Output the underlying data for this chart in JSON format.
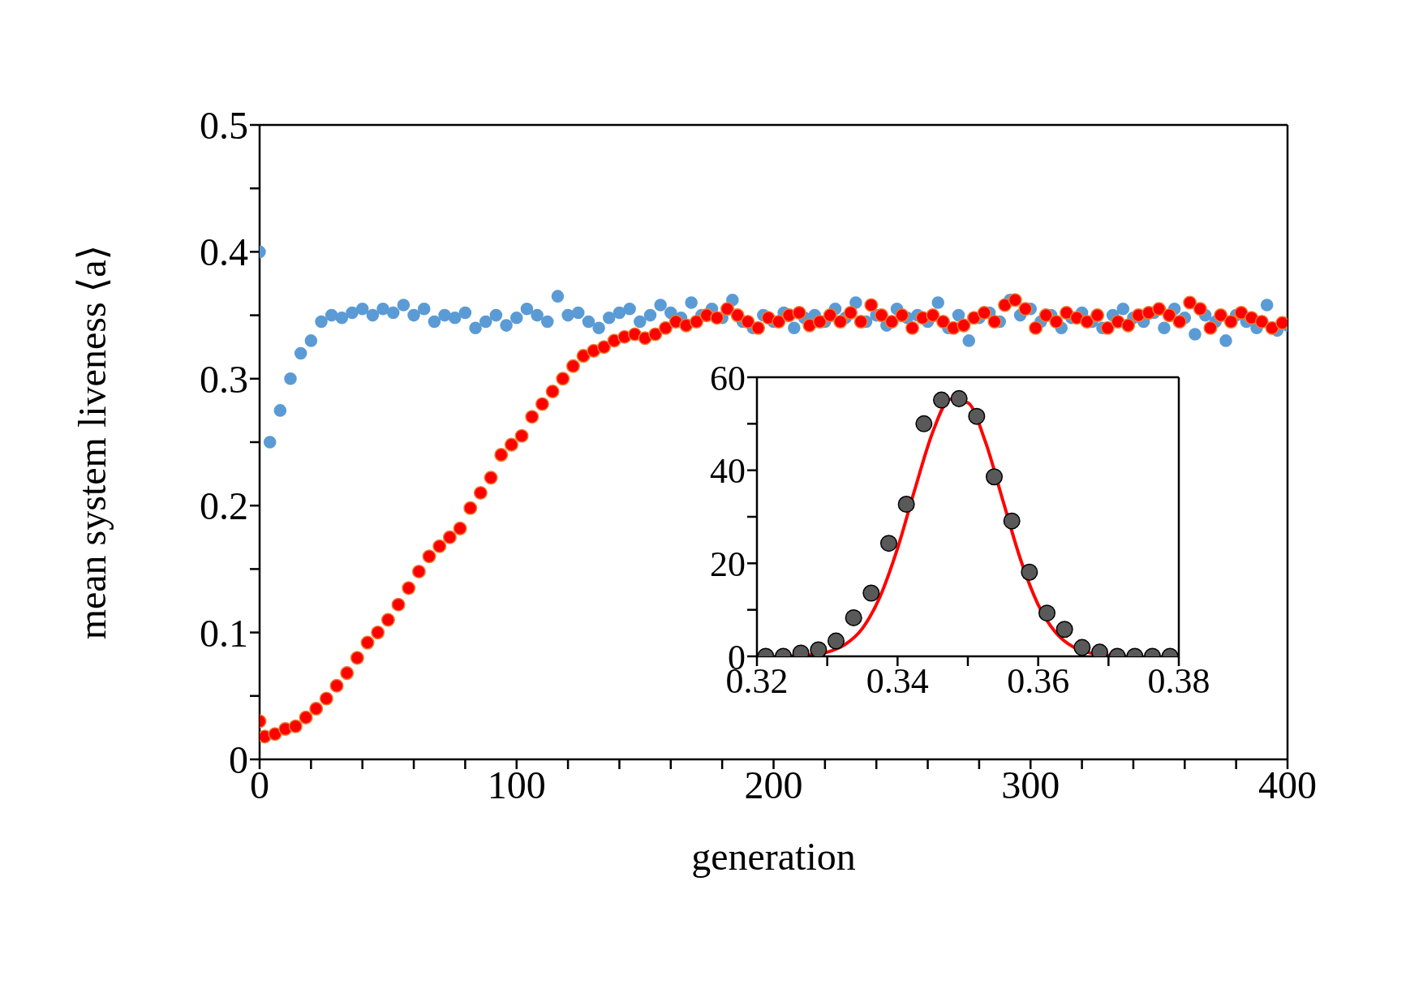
{
  "chart_data": [
    {
      "type": "scatter",
      "xlabel": "generation",
      "ylabel": "mean system liveness ⟨a⟩",
      "xlim": [
        0,
        400
      ],
      "ylim": [
        0,
        0.5
      ],
      "xticks": [
        0,
        {
          "value": 20,
          "label": null
        },
        {
          "value": 40,
          "label": null
        },
        {
          "value": 60,
          "label": null
        },
        {
          "value": 80,
          "label": null
        },
        100,
        {
          "value": 120,
          "label": null
        },
        {
          "value": 140,
          "label": null
        },
        {
          "value": 160,
          "label": null
        },
        {
          "value": 180,
          "label": null
        },
        200,
        {
          "value": 220,
          "label": null
        },
        {
          "value": 240,
          "label": null
        },
        {
          "value": 260,
          "label": null
        },
        {
          "value": 280,
          "label": null
        },
        300,
        {
          "value": 320,
          "label": null
        },
        {
          "value": 340,
          "label": null
        },
        {
          "value": 360,
          "label": null
        },
        {
          "value": 380,
          "label": null
        },
        400
      ],
      "yticks": [
        0,
        {
          "value": 0.05,
          "label": null
        },
        0.1,
        {
          "value": 0.15,
          "label": null
        },
        0.2,
        {
          "value": 0.25,
          "label": null
        },
        0.3,
        {
          "value": 0.35,
          "label": null
        },
        0.4,
        {
          "value": 0.45,
          "label": null
        },
        0.5
      ],
      "marker": "circle",
      "legend": false,
      "x": [
        0,
        4,
        8,
        12,
        16,
        20,
        24,
        28,
        32,
        36,
        40,
        44,
        48,
        52,
        56,
        60,
        64,
        68,
        72,
        76,
        80,
        84,
        88,
        92,
        96,
        100,
        104,
        108,
        112,
        116,
        120,
        124,
        128,
        132,
        136,
        140,
        144,
        148,
        152,
        156,
        160,
        164,
        168,
        172,
        176,
        180,
        184,
        188,
        192,
        196,
        200,
        204,
        208,
        212,
        216,
        220,
        224,
        228,
        232,
        236,
        240,
        244,
        248,
        252,
        256,
        260,
        264,
        268,
        272,
        276,
        280,
        284,
        288,
        292,
        296,
        300,
        304,
        308,
        312,
        316,
        320,
        324,
        328,
        332,
        336,
        340,
        344,
        348,
        352,
        356,
        360,
        364,
        368,
        372,
        376,
        380,
        384,
        388,
        392,
        396,
        400
      ],
      "series": [
        {
          "color": "#5b9bd5",
          "values": [
            0.4,
            0.25,
            0.275,
            0.3,
            0.32,
            0.33,
            0.345,
            0.35,
            0.348,
            0.352,
            0.355,
            0.35,
            0.355,
            0.352,
            0.358,
            0.35,
            0.355,
            0.345,
            0.35,
            0.348,
            0.352,
            0.34,
            0.345,
            0.35,
            0.342,
            0.348,
            0.355,
            0.35,
            0.345,
            0.365,
            0.35,
            0.352,
            0.345,
            0.34,
            0.348,
            0.352,
            0.355,
            0.345,
            0.35,
            0.358,
            0.352,
            0.348,
            0.36,
            0.35,
            0.355,
            0.348,
            0.362,
            0.345,
            0.34,
            0.35,
            0.345,
            0.352,
            0.34,
            0.348,
            0.35,
            0.345,
            0.355,
            0.348,
            0.36,
            0.345,
            0.35,
            0.342,
            0.355,
            0.348,
            0.35,
            0.345,
            0.36,
            0.34,
            0.35,
            0.33,
            0.348,
            0.352,
            0.345,
            0.362,
            0.35,
            0.355,
            0.345,
            0.35,
            0.34,
            0.348,
            0.352,
            0.345,
            0.34,
            0.35,
            0.355,
            0.348,
            0.345,
            0.352,
            0.34,
            0.355,
            0.348,
            0.335,
            0.35,
            0.345,
            0.33,
            0.35,
            0.345,
            0.34,
            0.358,
            0.338,
            0.342
          ]
        },
        {
          "color": "#ff0000",
          "x": [
            0,
            2,
            6,
            10,
            14,
            18,
            22,
            26,
            30,
            34,
            38,
            42,
            46,
            50,
            54,
            58,
            62,
            66,
            70,
            74,
            78,
            82,
            86,
            90,
            94,
            98,
            102,
            106,
            110,
            114,
            118,
            122,
            126,
            130,
            134,
            138,
            142,
            146,
            150,
            154,
            158,
            162,
            166,
            170,
            174,
            178,
            182,
            186,
            190,
            194,
            198,
            202,
            206,
            210,
            214,
            218,
            222,
            226,
            230,
            234,
            238,
            242,
            246,
            250,
            254,
            258,
            262,
            266,
            270,
            274,
            278,
            282,
            286,
            290,
            294,
            298,
            302,
            306,
            310,
            314,
            318,
            322,
            326,
            330,
            334,
            338,
            342,
            346,
            350,
            354,
            358,
            362,
            366,
            370,
            374,
            378,
            382,
            386,
            390,
            394,
            398
          ],
          "values": [
            0.03,
            0.018,
            0.02,
            0.024,
            0.026,
            0.033,
            0.04,
            0.048,
            0.058,
            0.068,
            0.08,
            0.092,
            0.1,
            0.11,
            0.122,
            0.135,
            0.148,
            0.16,
            0.168,
            0.175,
            0.182,
            0.198,
            0.21,
            0.222,
            0.24,
            0.248,
            0.255,
            0.27,
            0.28,
            0.29,
            0.3,
            0.31,
            0.318,
            0.322,
            0.325,
            0.33,
            0.333,
            0.335,
            0.332,
            0.335,
            0.34,
            0.345,
            0.342,
            0.345,
            0.35,
            0.348,
            0.355,
            0.35,
            0.345,
            0.34,
            0.348,
            0.345,
            0.35,
            0.352,
            0.342,
            0.345,
            0.35,
            0.345,
            0.352,
            0.345,
            0.358,
            0.35,
            0.345,
            0.35,
            0.34,
            0.348,
            0.35,
            0.345,
            0.34,
            0.342,
            0.348,
            0.352,
            0.345,
            0.358,
            0.362,
            0.355,
            0.34,
            0.35,
            0.345,
            0.352,
            0.348,
            0.345,
            0.35,
            0.34,
            0.345,
            0.342,
            0.35,
            0.352,
            0.355,
            0.35,
            0.345,
            0.36,
            0.355,
            0.34,
            0.35,
            0.345,
            0.352,
            0.348,
            0.345,
            0.34,
            0.344
          ]
        }
      ]
    },
    {
      "type": "scatter",
      "xlim": [
        0.32,
        0.38
      ],
      "ylim": [
        0,
        60
      ],
      "legend": false,
      "xticks": [
        0.32,
        {
          "value": 0.33,
          "label": null
        },
        0.34,
        {
          "value": 0.35,
          "label": null
        },
        0.36,
        {
          "value": 0.37,
          "label": null
        },
        0.38
      ],
      "yticks": [
        0,
        {
          "value": 10,
          "label": null
        },
        20,
        {
          "value": 30,
          "label": null
        },
        40,
        {
          "value": 50,
          "label": null
        },
        60
      ],
      "series": [
        {
          "color": "#595959",
          "marker": "circle",
          "x": [
            0.32125,
            0.32375,
            0.32625,
            0.32875,
            0.33125,
            0.33375,
            0.33625,
            0.33875,
            0.34125,
            0.34375,
            0.34625,
            0.34875,
            0.35125,
            0.35375,
            0.35625,
            0.35875,
            0.36125,
            0.36375,
            0.36625,
            0.36875,
            0.37125,
            0.37375,
            0.37625,
            0.37875
          ],
          "values": [
            0,
            0,
            0.7,
            1.4,
            3.3,
            8.3,
            13.6,
            24.3,
            32.7,
            50,
            55.1,
            55.4,
            51.6,
            38.6,
            29.1,
            18.1,
            9.3,
            5.8,
            1.9,
            0.9,
            0,
            0,
            0,
            0
          ]
        },
        {
          "type": "line",
          "marker": "none",
          "color": "#ff0000",
          "x": [
            0.3225,
            0.325,
            0.3275,
            0.33,
            0.3325,
            0.335,
            0.3375,
            0.34,
            0.3425,
            0.345,
            0.3475,
            0.35,
            0.3525,
            0.355,
            0.3575,
            0.36,
            0.3625,
            0.365,
            0.3675,
            0.37,
            0.3725
          ],
          "values": [
            0,
            0.1,
            0.3,
            0.9,
            2.5,
            6,
            12.8,
            23.2,
            36.1,
            48.2,
            55.3,
            54.5,
            46.1,
            33.4,
            20.8,
            11.1,
            5.1,
            2,
            0.7,
            0.2,
            0.1
          ]
        }
      ]
    }
  ]
}
